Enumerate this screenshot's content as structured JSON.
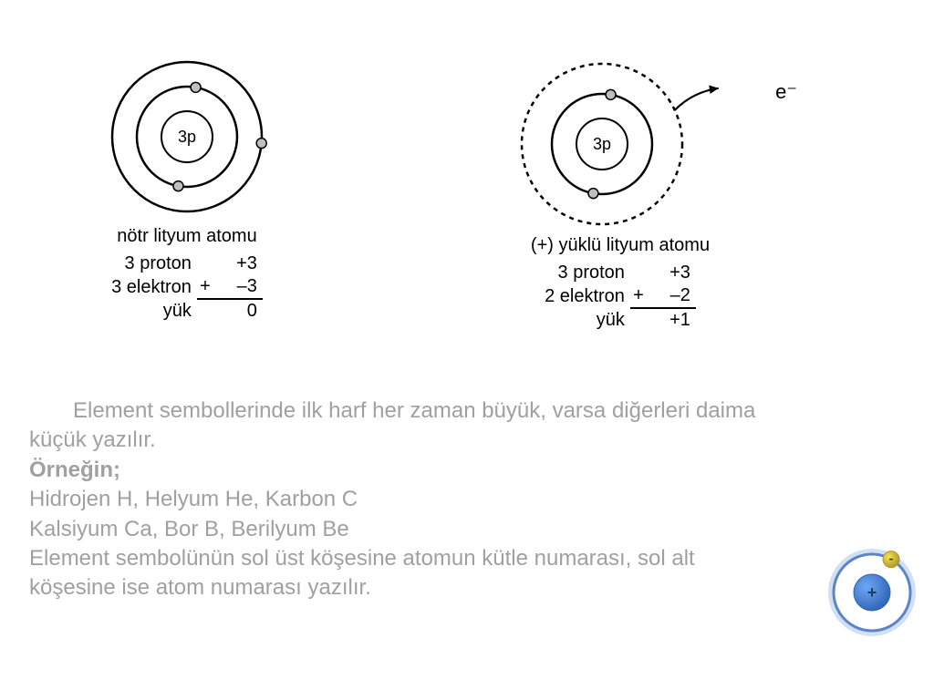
{
  "colors": {
    "bg": "#ffffff",
    "ink": "#000000",
    "text_gray": "#a0a0a0",
    "electron_fill": "#bfbfbf",
    "corner_orbit": "#5b85c8",
    "corner_orbit_glow": "#7ea6e0",
    "corner_nucleus_blue": "#6fa8f7",
    "corner_nucleus_blue_dark": "#2f64b5",
    "corner_electron_yellow": "#f5e24a",
    "corner_electron_yellow_dark": "#b0972c",
    "corner_plus_minus": "#1e3d6b"
  },
  "atom_left": {
    "nucleus_label": "3p",
    "shells": [
      {
        "r": 28,
        "style": "solid",
        "stroke_width": 2
      },
      {
        "r": 55,
        "style": "solid",
        "stroke_width": 2.5
      },
      {
        "r": 82,
        "style": "solid",
        "stroke_width": 2.5
      }
    ],
    "electrons": [
      {
        "shell": 1,
        "angle_deg": 80
      },
      {
        "shell": 1,
        "angle_deg": 260
      },
      {
        "shell": 2,
        "angle_deg": 355
      }
    ],
    "caption": "nötr lityum atomu",
    "calc": {
      "rows": [
        {
          "label": "3 proton",
          "value": "+3",
          "plus": ""
        },
        {
          "label": "3 elektron",
          "value": "–3",
          "plus": "+"
        }
      ],
      "result": {
        "label": "yük",
        "value": "0"
      }
    }
  },
  "atom_right": {
    "nucleus_label": "3p",
    "shells": [
      {
        "r": 28,
        "style": "solid",
        "stroke_width": 2
      },
      {
        "r": 55,
        "style": "solid",
        "stroke_width": 2.5
      },
      {
        "r": 88,
        "style": "dashed",
        "stroke_width": 2.5
      }
    ],
    "electrons": [
      {
        "shell": 1,
        "angle_deg": 80
      },
      {
        "shell": 1,
        "angle_deg": 260
      }
    ],
    "leaving_electron": {
      "start_angle_deg": 25,
      "label": "e⁻"
    },
    "caption": "(+) yüklü lityum atomu",
    "calc": {
      "rows": [
        {
          "label": "3 proton",
          "value": "+3",
          "plus": ""
        },
        {
          "label": "2 elektron",
          "value": "–2",
          "plus": "+"
        }
      ],
      "result": {
        "label": "yük",
        "value": "+1"
      }
    }
  },
  "text": {
    "para1": "Element sembollerinde ilk harf her zaman büyük, varsa diğerleri daima küçük yazılır.",
    "ornegin": "Örneğin;",
    "line1": "Hidrojen H, Helyum He, Karbon C",
    "line2": "Kalsiyum Ca, Bor B, Berilyum Be",
    "line3": "Element sembolünün sol üst köşesine atomun kütle numarası, sol alt köşesine ise atom numarası yazılır."
  },
  "corner_atom": {
    "orbit_r": 42,
    "nucleus_r": 20,
    "electron_r": 9,
    "electron_angle_deg": 60,
    "plus": "+",
    "minus": "-"
  }
}
